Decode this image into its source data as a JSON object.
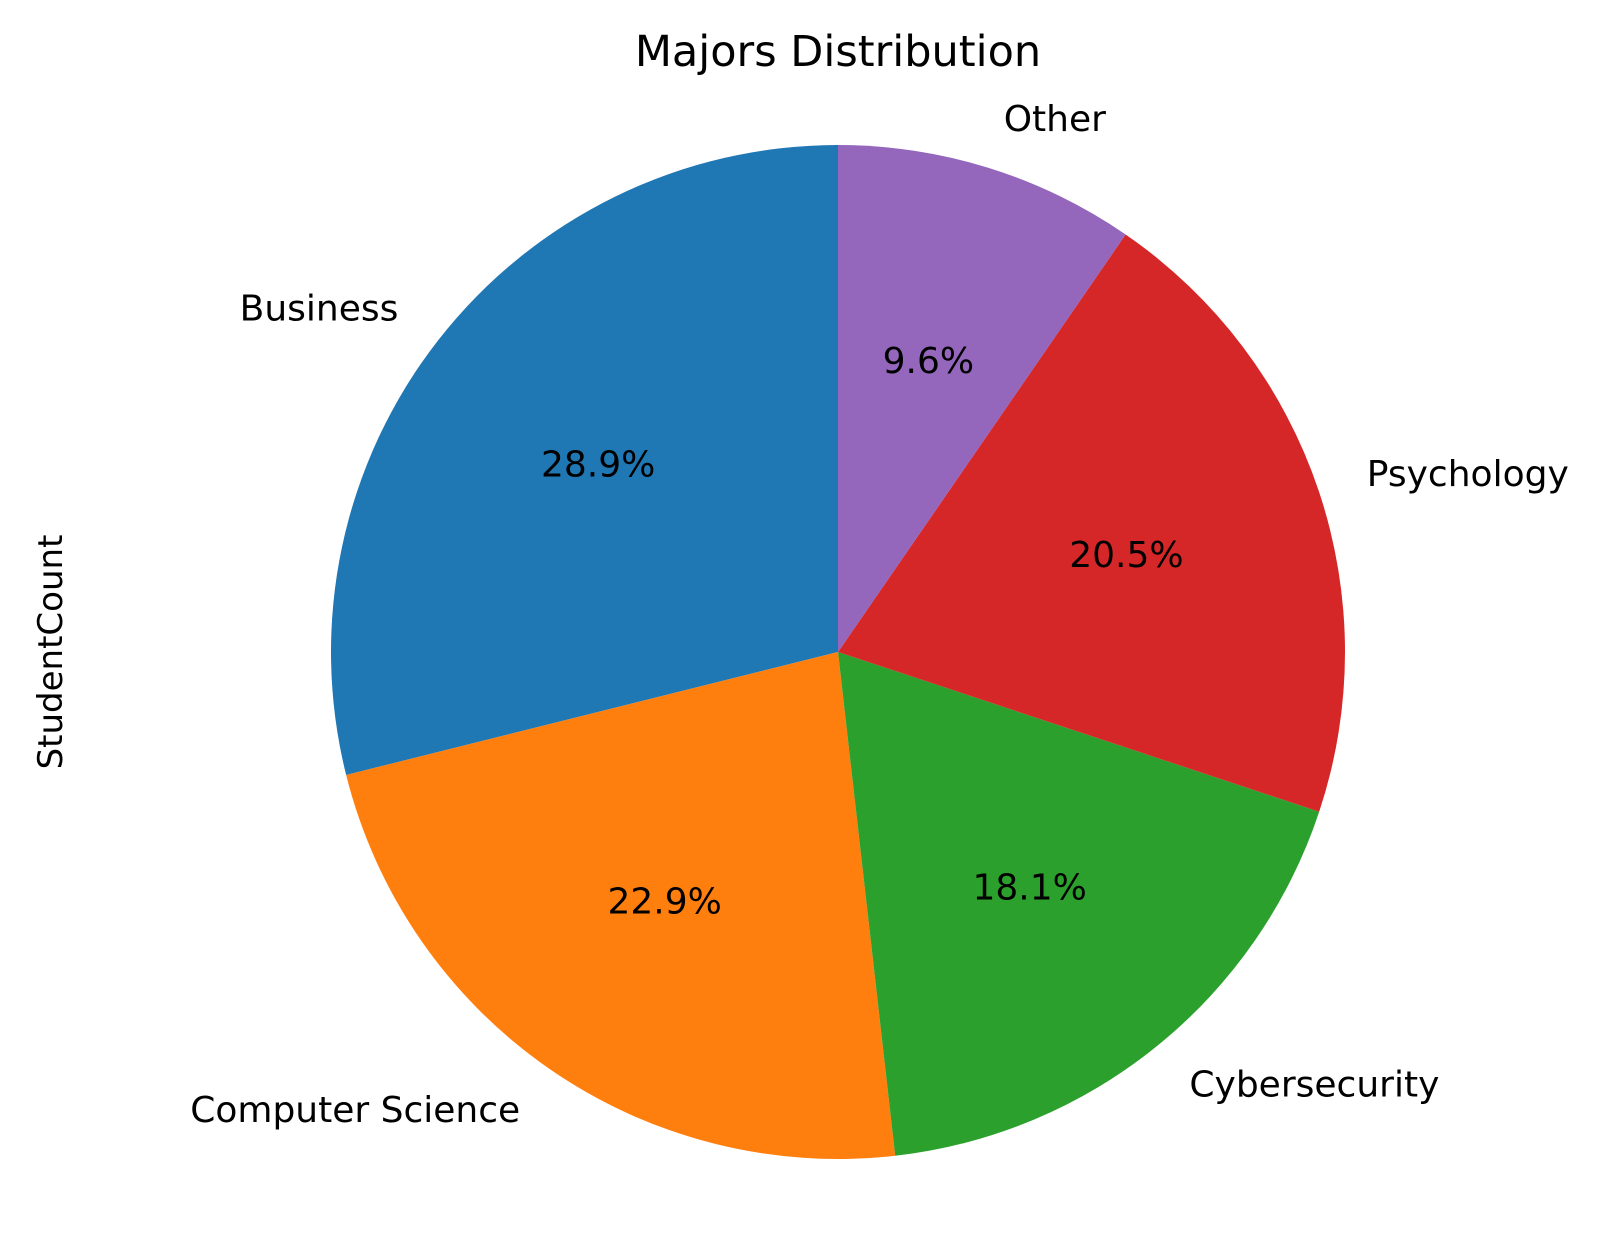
{
  "chart_data": {
    "type": "pie",
    "title": "Majors Distribution",
    "ylabel": "StudentCount",
    "xlabel": "",
    "start_angle_deg": 90,
    "direction": "counterclockwise",
    "slices": [
      {
        "label": "Business",
        "value": 28.9,
        "pct_label": "28.9%",
        "color": "#1f77b4"
      },
      {
        "label": "Computer Science",
        "value": 22.9,
        "pct_label": "22.9%",
        "color": "#ff7f0e"
      },
      {
        "label": "Cybersecurity",
        "value": 18.1,
        "pct_label": "18.1%",
        "color": "#2ca02c"
      },
      {
        "label": "Psychology",
        "value": 20.5,
        "pct_label": "20.5%",
        "color": "#d62728"
      },
      {
        "label": "Other",
        "value": 9.6,
        "pct_label": "9.6%",
        "color": "#9467bd"
      }
    ],
    "legend": "none",
    "grid": false
  }
}
